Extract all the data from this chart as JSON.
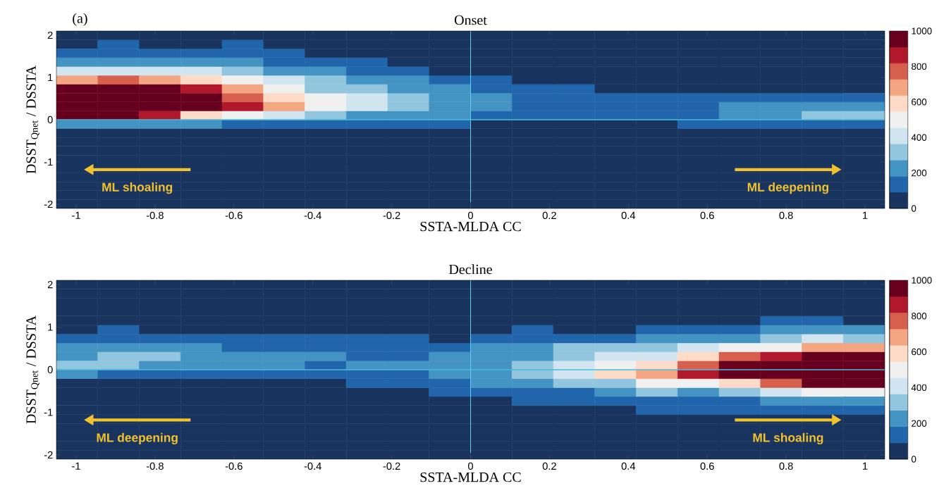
{
  "chart_data": [
    {
      "type": "heatmap",
      "title": "Onset",
      "xlabel": "SSTA-MLDA CC",
      "ylabel": "DSST$_{Qnet}$ / DSSTA",
      "annotations": [
        "(a)",
        "ML shoaling",
        "ML deepening"
      ],
      "xlim": [
        -1.05,
        1.05
      ],
      "ylim": [
        -2.1,
        2.1
      ],
      "xticks": [
        -1,
        -0.8,
        -0.6,
        -0.4,
        -0.2,
        0,
        0.2,
        0.4,
        0.6,
        0.8,
        1
      ],
      "yticks": [
        -2,
        -1,
        0,
        1,
        2
      ],
      "clim": [
        0,
        1000
      ],
      "cticks": [
        0,
        200,
        400,
        600,
        800,
        1000
      ],
      "ref_lines": [
        {
          "axis": "x",
          "value": 0,
          "color": "#5ccce8"
        },
        {
          "axis": "y",
          "value": 0,
          "color": "#48bcd8"
        }
      ],
      "cells": [
        [
          0,
          0,
          0,
          0,
          0,
          0,
          0,
          0,
          0,
          0,
          0,
          0,
          0,
          0,
          0,
          0,
          0,
          0,
          0,
          0
        ],
        [
          0,
          140,
          0,
          0,
          140,
          0,
          0,
          0,
          0,
          0,
          0,
          0,
          0,
          0,
          0,
          0,
          0,
          0,
          0,
          0
        ],
        [
          140,
          140,
          140,
          140,
          140,
          140,
          0,
          0,
          0,
          0,
          0,
          0,
          0,
          0,
          0,
          0,
          0,
          0,
          0,
          0
        ],
        [
          230,
          230,
          230,
          230,
          230,
          140,
          140,
          140,
          0,
          0,
          0,
          0,
          0,
          0,
          0,
          0,
          0,
          0,
          0,
          0
        ],
        [
          410,
          410,
          410,
          410,
          320,
          230,
          230,
          140,
          140,
          0,
          0,
          0,
          0,
          0,
          0,
          0,
          0,
          0,
          0,
          0
        ],
        [
          680,
          770,
          680,
          590,
          500,
          410,
          320,
          230,
          230,
          140,
          140,
          0,
          0,
          0,
          0,
          0,
          0,
          0,
          0,
          0
        ],
        [
          1000,
          1000,
          1000,
          860,
          680,
          500,
          320,
          320,
          230,
          230,
          140,
          140,
          140,
          0,
          0,
          0,
          0,
          0,
          0,
          0
        ],
        [
          1000,
          1000,
          1000,
          1000,
          770,
          590,
          500,
          410,
          320,
          230,
          230,
          140,
          140,
          140,
          140,
          140,
          140,
          140,
          140,
          140
        ],
        [
          1000,
          1000,
          1000,
          1000,
          860,
          680,
          500,
          410,
          320,
          230,
          230,
          140,
          140,
          140,
          140,
          140,
          230,
          230,
          230,
          230
        ],
        [
          1000,
          1000,
          860,
          590,
          500,
          410,
          320,
          230,
          230,
          230,
          140,
          140,
          140,
          140,
          140,
          140,
          230,
          230,
          320,
          320
        ],
        [
          230,
          230,
          230,
          230,
          140,
          140,
          140,
          140,
          140,
          140,
          0,
          0,
          0,
          0,
          0,
          140,
          140,
          140,
          140,
          140
        ],
        [
          0,
          0,
          0,
          0,
          0,
          0,
          0,
          0,
          0,
          0,
          0,
          0,
          0,
          0,
          0,
          0,
          0,
          0,
          0,
          0
        ],
        [
          0,
          0,
          0,
          0,
          0,
          0,
          0,
          0,
          0,
          0,
          0,
          0,
          0,
          0,
          0,
          0,
          0,
          0,
          0,
          0
        ],
        [
          0,
          0,
          0,
          0,
          0,
          0,
          0,
          0,
          0,
          0,
          0,
          0,
          0,
          0,
          0,
          0,
          0,
          0,
          0,
          0
        ],
        [
          0,
          0,
          0,
          0,
          0,
          0,
          0,
          0,
          0,
          0,
          0,
          0,
          0,
          0,
          0,
          0,
          0,
          0,
          0,
          0
        ],
        [
          0,
          0,
          0,
          0,
          0,
          0,
          0,
          0,
          0,
          0,
          0,
          0,
          0,
          0,
          0,
          0,
          0,
          0,
          0,
          0
        ],
        [
          0,
          0,
          0,
          0,
          0,
          0,
          0,
          0,
          0,
          0,
          0,
          0,
          0,
          0,
          0,
          0,
          0,
          0,
          0,
          0
        ],
        [
          0,
          0,
          0,
          0,
          0,
          0,
          0,
          0,
          0,
          0,
          0,
          0,
          0,
          0,
          0,
          0,
          0,
          0,
          0,
          0
        ],
        [
          0,
          0,
          0,
          0,
          0,
          0,
          0,
          0,
          0,
          0,
          0,
          0,
          0,
          0,
          0,
          0,
          0,
          0,
          0,
          0
        ],
        [
          0,
          0,
          0,
          0,
          0,
          0,
          0,
          0,
          0,
          0,
          0,
          0,
          0,
          0,
          0,
          0,
          0,
          0,
          0,
          0
        ]
      ]
    },
    {
      "type": "heatmap",
      "title": "Decline",
      "xlabel": "SSTA-MLDA CC",
      "ylabel": "DSST$_{Qnet}$ / DSSTA",
      "annotations": [
        "ML deepening",
        "ML shoaling"
      ],
      "xlim": [
        -1.05,
        1.05
      ],
      "ylim": [
        -2.1,
        2.1
      ],
      "xticks": [
        -1,
        -0.8,
        -0.6,
        -0.4,
        -0.2,
        0,
        0.2,
        0.4,
        0.6,
        0.8,
        1
      ],
      "yticks": [
        -2,
        -1,
        0,
        1,
        2
      ],
      "clim": [
        0,
        1000
      ],
      "cticks": [
        0,
        200,
        400,
        600,
        800,
        1000
      ],
      "ref_lines": [
        {
          "axis": "x",
          "value": 0,
          "color": "#5ccce8"
        },
        {
          "axis": "y",
          "value": 0,
          "color": "#48bcd8"
        }
      ],
      "cells": [
        [
          0,
          0,
          0,
          0,
          0,
          0,
          0,
          0,
          0,
          0,
          0,
          0,
          0,
          0,
          0,
          0,
          0,
          0,
          0,
          0
        ],
        [
          0,
          0,
          0,
          0,
          0,
          0,
          0,
          0,
          0,
          0,
          0,
          0,
          0,
          0,
          0,
          0,
          0,
          0,
          0,
          0
        ],
        [
          0,
          0,
          0,
          0,
          0,
          0,
          0,
          0,
          0,
          0,
          0,
          0,
          0,
          0,
          0,
          0,
          0,
          0,
          0,
          0
        ],
        [
          0,
          0,
          0,
          0,
          0,
          0,
          0,
          0,
          0,
          0,
          0,
          0,
          0,
          0,
          0,
          0,
          0,
          0,
          0,
          0
        ],
        [
          0,
          0,
          0,
          0,
          0,
          0,
          0,
          0,
          0,
          0,
          0,
          0,
          0,
          0,
          0,
          0,
          0,
          140,
          140,
          0
        ],
        [
          0,
          140,
          0,
          0,
          0,
          0,
          0,
          0,
          0,
          0,
          0,
          140,
          0,
          0,
          140,
          140,
          140,
          230,
          230,
          230
        ],
        [
          140,
          140,
          140,
          140,
          140,
          140,
          140,
          140,
          140,
          0,
          140,
          140,
          140,
          140,
          230,
          230,
          230,
          320,
          410,
          320
        ],
        [
          230,
          230,
          230,
          230,
          140,
          140,
          140,
          140,
          140,
          140,
          230,
          230,
          320,
          320,
          320,
          410,
          500,
          500,
          680,
          680
        ],
        [
          230,
          320,
          320,
          230,
          230,
          230,
          230,
          140,
          140,
          230,
          230,
          230,
          320,
          410,
          410,
          590,
          770,
          860,
          1000,
          1000
        ],
        [
          320,
          320,
          230,
          230,
          230,
          230,
          140,
          230,
          230,
          230,
          230,
          320,
          410,
          500,
          590,
          770,
          1000,
          1000,
          1000,
          1000
        ],
        [
          230,
          140,
          140,
          140,
          140,
          140,
          140,
          140,
          140,
          230,
          230,
          320,
          410,
          590,
          680,
          860,
          1000,
          1000,
          1000,
          1000
        ],
        [
          0,
          0,
          0,
          0,
          0,
          0,
          0,
          140,
          140,
          140,
          230,
          230,
          320,
          320,
          500,
          500,
          590,
          770,
          1000,
          1000
        ],
        [
          0,
          0,
          0,
          0,
          0,
          0,
          0,
          0,
          0,
          140,
          140,
          140,
          140,
          230,
          320,
          230,
          320,
          410,
          500,
          500
        ],
        [
          0,
          0,
          0,
          0,
          0,
          0,
          0,
          0,
          0,
          0,
          0,
          140,
          140,
          140,
          140,
          140,
          140,
          230,
          230,
          230
        ],
        [
          0,
          0,
          0,
          0,
          0,
          0,
          0,
          0,
          0,
          0,
          0,
          0,
          0,
          0,
          140,
          140,
          140,
          140,
          140,
          140
        ],
        [
          0,
          0,
          0,
          0,
          0,
          0,
          0,
          0,
          0,
          0,
          0,
          0,
          0,
          0,
          0,
          0,
          0,
          0,
          0,
          0
        ],
        [
          0,
          0,
          0,
          0,
          0,
          0,
          0,
          0,
          0,
          0,
          0,
          0,
          0,
          0,
          0,
          0,
          0,
          0,
          0,
          0
        ],
        [
          0,
          0,
          0,
          0,
          0,
          0,
          0,
          0,
          0,
          0,
          0,
          0,
          0,
          0,
          0,
          0,
          0,
          0,
          0,
          0
        ],
        [
          0,
          0,
          0,
          0,
          0,
          0,
          0,
          0,
          0,
          0,
          0,
          0,
          0,
          0,
          0,
          0,
          0,
          0,
          0,
          0
        ],
        [
          0,
          0,
          0,
          0,
          0,
          0,
          0,
          0,
          0,
          0,
          0,
          0,
          0,
          0,
          0,
          0,
          0,
          0,
          0,
          0
        ]
      ]
    }
  ]
}
